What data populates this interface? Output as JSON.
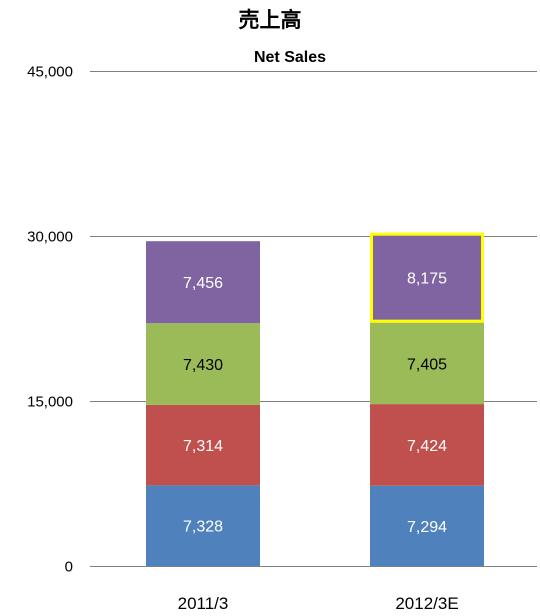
{
  "chart_data": {
    "type": "bar",
    "stacked": true,
    "title": "売上高",
    "subtitle": "Net Sales",
    "categories": [
      "2011/3",
      "2012/3E"
    ],
    "ylim": [
      0,
      45000
    ],
    "yticks": [
      0,
      15000,
      30000,
      45000
    ],
    "ytick_labels": [
      "0",
      "15,000",
      "30,000",
      "45,000"
    ],
    "grid": true,
    "legend": "none",
    "series": [
      {
        "values": [
          7328,
          7294
        ],
        "labels": [
          "7,328",
          "7,294"
        ],
        "color": "#4F81BD",
        "label_color": "#ffffff"
      },
      {
        "values": [
          7314,
          7424
        ],
        "labels": [
          "7,314",
          "7,424"
        ],
        "color": "#C0504D",
        "label_color": "#ffffff"
      },
      {
        "values": [
          7430,
          7405
        ],
        "labels": [
          "7,430",
          "7,405"
        ],
        "color": "#9BBB59",
        "label_color": "#000000"
      },
      {
        "values": [
          7456,
          8175
        ],
        "labels": [
          "7,456",
          "8,175"
        ],
        "color": "#8064A2",
        "label_color": "#ffffff"
      }
    ],
    "highlight": {
      "series_index": 3,
      "category_index": 1,
      "color": "#FFFF00"
    }
  }
}
